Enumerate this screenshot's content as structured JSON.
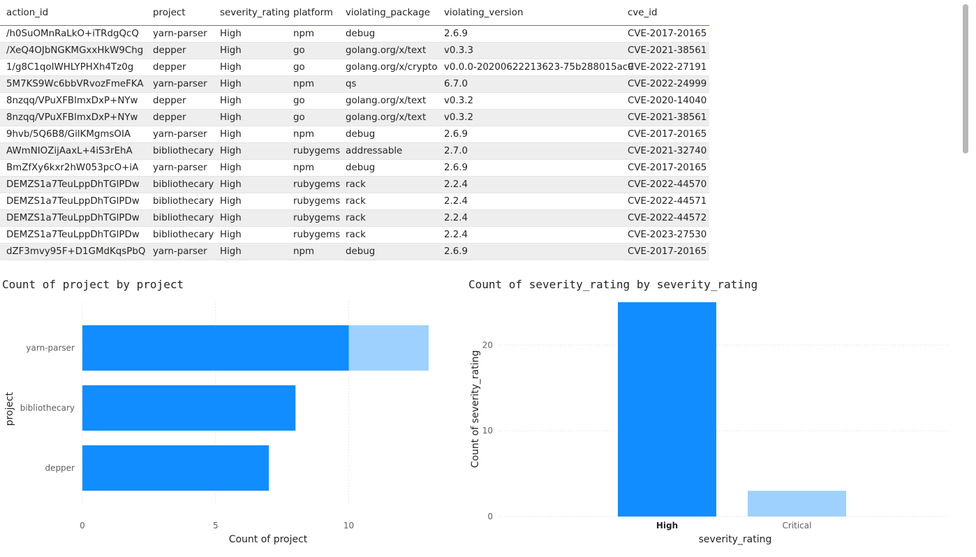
{
  "table": {
    "columns": [
      "action_id",
      "project",
      "severity_rating",
      "platform",
      "violating_package",
      "violating_version",
      "cve_id"
    ],
    "rows": [
      [
        "/h0SuOMnRaLkO+iTRdgQcQ",
        "yarn-parser",
        "High",
        "npm",
        "debug",
        "2.6.9",
        "CVE-2017-20165"
      ],
      [
        "/XeQ4OJbNGKMGxxHkW9Chg",
        "depper",
        "High",
        "go",
        "golang.org/x/text",
        "v0.3.3",
        "CVE-2021-38561"
      ],
      [
        "1/g8C1qoIWHLYPHXh4Tz0g",
        "depper",
        "High",
        "go",
        "golang.org/x/crypto",
        "v0.0.0-20200622213623-75b288015ac9",
        "CVE-2022-27191"
      ],
      [
        "5M7KS9Wc6bbVRvozFmeFKA",
        "yarn-parser",
        "High",
        "npm",
        "qs",
        "6.7.0",
        "CVE-2022-24999"
      ],
      [
        "8nzqq/VPuXFBlmxDxP+NYw",
        "depper",
        "High",
        "go",
        "golang.org/x/text",
        "v0.3.2",
        "CVE-2020-14040"
      ],
      [
        "8nzqq/VPuXFBlmxDxP+NYw",
        "depper",
        "High",
        "go",
        "golang.org/x/text",
        "v0.3.2",
        "CVE-2021-38561"
      ],
      [
        "9hvb/5Q6B8/GilKMgmsOIA",
        "yarn-parser",
        "High",
        "npm",
        "debug",
        "2.6.9",
        "CVE-2017-20165"
      ],
      [
        "AWmNIOZijAaxL+4iS3rEhA",
        "bibliothecary",
        "High",
        "rubygems",
        "addressable",
        "2.7.0",
        "CVE-2021-32740"
      ],
      [
        "BmZfXy6kxr2hW053pcO+iA",
        "yarn-parser",
        "High",
        "npm",
        "debug",
        "2.6.9",
        "CVE-2017-20165"
      ],
      [
        "DEMZS1a7TeuLppDhTGlPDw",
        "bibliothecary",
        "High",
        "rubygems",
        "rack",
        "2.2.4",
        "CVE-2022-44570"
      ],
      [
        "DEMZS1a7TeuLppDhTGlPDw",
        "bibliothecary",
        "High",
        "rubygems",
        "rack",
        "2.2.4",
        "CVE-2022-44571"
      ],
      [
        "DEMZS1a7TeuLppDhTGlPDw",
        "bibliothecary",
        "High",
        "rubygems",
        "rack",
        "2.2.4",
        "CVE-2022-44572"
      ],
      [
        "DEMZS1a7TeuLppDhTGlPDw",
        "bibliothecary",
        "High",
        "rubygems",
        "rack",
        "2.2.4",
        "CVE-2023-27530"
      ],
      [
        "dZF3mvy95F+D1GMdKqsPbQ",
        "yarn-parser",
        "High",
        "npm",
        "debug",
        "2.6.9",
        "CVE-2017-20165"
      ]
    ]
  },
  "chart_data": [
    {
      "type": "bar",
      "orientation": "horizontal",
      "title": "Count of project by project",
      "categories": [
        "yarn-parser",
        "bibliothecary",
        "depper"
      ],
      "values": [
        13,
        8,
        7
      ],
      "highlighted_values": [
        10,
        8,
        7
      ],
      "xlabel": "Count of project",
      "ylabel": "project",
      "xlim": [
        0,
        13
      ],
      "xticks": [
        "0",
        "5",
        "10"
      ],
      "grid": true,
      "colors": {
        "highlight": "#118dff",
        "base": "#9fd1ff"
      }
    },
    {
      "type": "bar",
      "orientation": "vertical",
      "title": "Count of severity_rating by severity_rating",
      "categories": [
        "High",
        "Critical"
      ],
      "values": [
        25,
        3
      ],
      "selected_category": "High",
      "xlabel": "severity_rating",
      "ylabel": "Count of severity_rating",
      "ylim": [
        0,
        25
      ],
      "yticks": [
        "0",
        "10",
        "20"
      ],
      "grid": true,
      "colors": {
        "highlight": "#118dff",
        "base": "#9fd1ff"
      }
    }
  ]
}
